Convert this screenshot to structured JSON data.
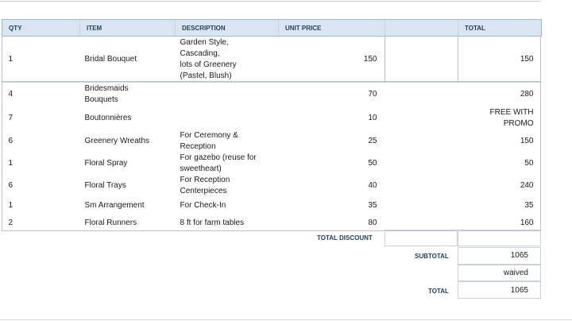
{
  "columns": {
    "qty": "QTY",
    "item": "ITEM",
    "description": "DESCRIPTION",
    "unit_price": "UNIT PRICE",
    "blank": "",
    "total": "TOTAL"
  },
  "rows": [
    {
      "qty": "1",
      "item": "Bridal Bouquet",
      "description": "Garden Style,\nCascading,\nlots of Greenery\n (Pastel, Blush)",
      "unit_price": "150",
      "total": "150"
    },
    {
      "qty": "4",
      "item": "Bridesmaids\nBouquets",
      "description": "",
      "unit_price": "70",
      "total": "280"
    },
    {
      "qty": "7",
      "item": "Boutonnières",
      "description": "",
      "unit_price": "10",
      "total": "FREE WITH\nPROMO"
    },
    {
      "qty": "6",
      "item": "Greenery Wreaths",
      "description": "For Ceremony &\nReception",
      "unit_price": "25",
      "total": "150"
    },
    {
      "qty": "1",
      "item": "Floral Spray",
      "description": "For gazebo (reuse for\nsweetheart)",
      "unit_price": "50",
      "total": "50"
    },
    {
      "qty": "6",
      "item": "Floral Trays",
      "description": "For Reception\nCenterpieces",
      "unit_price": "40",
      "total": "240"
    },
    {
      "qty": "1",
      "item": "Sm Arrangement",
      "description": "For Check-In",
      "unit_price": "35",
      "total": "35"
    },
    {
      "qty": "2",
      "item": "Floral Runners",
      "description": "8 ft for farm tables",
      "unit_price": "80",
      "total": "160"
    }
  ],
  "summary": {
    "total_discount_label": "TOTAL DISCOUNT",
    "total_discount_value": "",
    "subtotal_label": "SUBTOTAL",
    "subtotal_value": "1065",
    "discount_value": "waived",
    "total_label": "TOTAL",
    "total_value": "1065"
  }
}
